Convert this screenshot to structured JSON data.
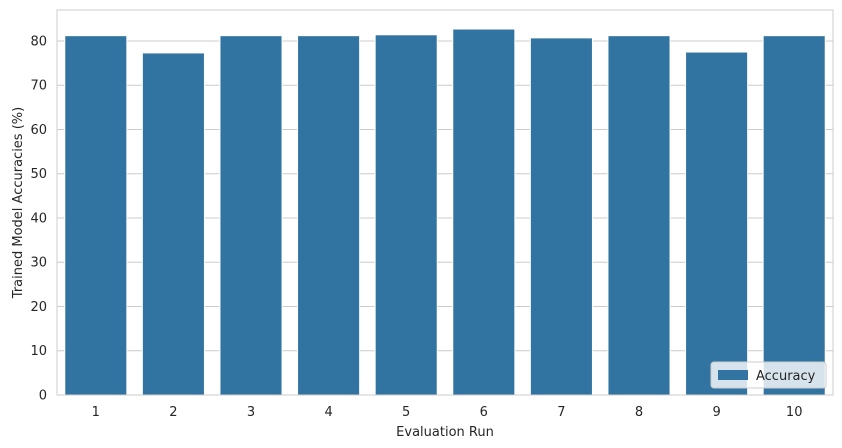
{
  "chart_data": {
    "type": "bar",
    "categories": [
      "1",
      "2",
      "3",
      "4",
      "5",
      "6",
      "7",
      "8",
      "9",
      "10"
    ],
    "series": [
      {
        "name": "Accuracy",
        "values": [
          81.2,
          77.3,
          81.2,
          81.2,
          81.4,
          82.7,
          80.7,
          81.2,
          77.5,
          81.2
        ]
      }
    ],
    "title": "",
    "xlabel": "Evaluation Run",
    "ylabel": "Trained Model Accuracies (%)",
    "ylim": [
      0,
      87
    ],
    "yticks": [
      0,
      10,
      20,
      30,
      40,
      50,
      60,
      70,
      80
    ],
    "grid": "horizontal",
    "legend": "lower-right",
    "colors": {
      "bar": "#3274a1",
      "grid": "#cccccc",
      "axes": "#cccccc",
      "text": "#262626"
    }
  }
}
